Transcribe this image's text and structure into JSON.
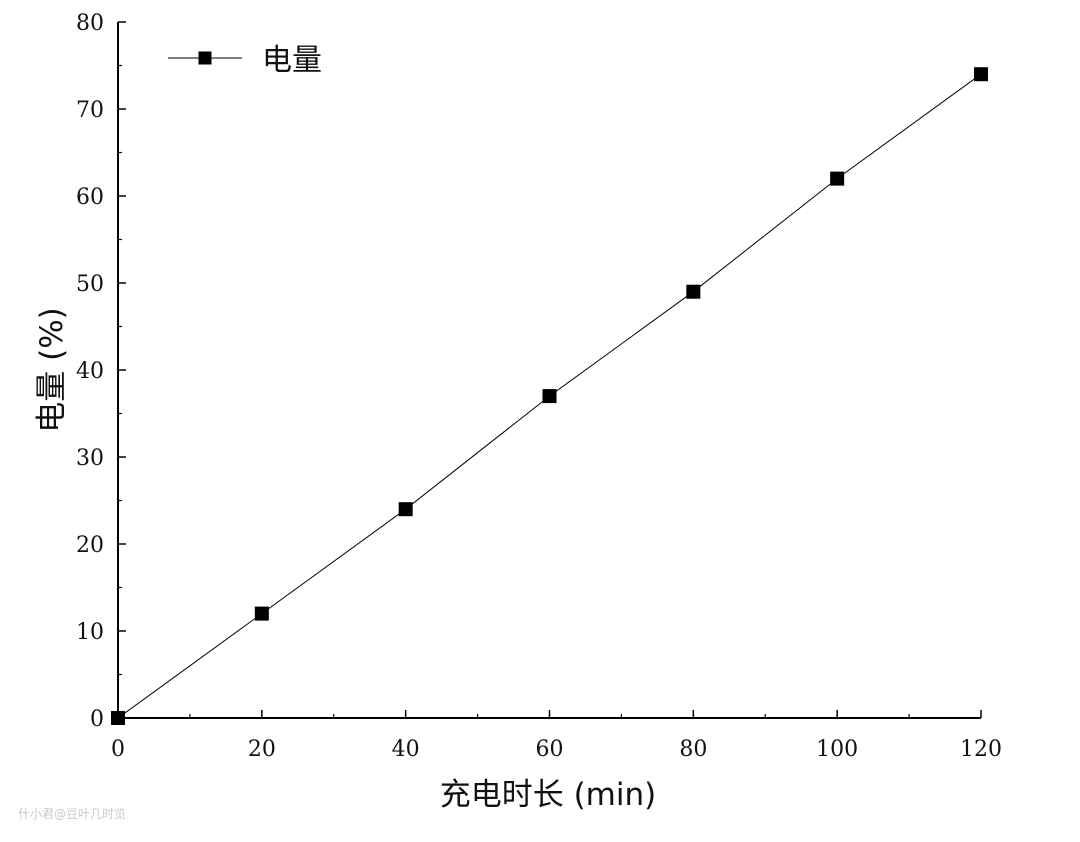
{
  "chart_data": {
    "type": "line",
    "x": [
      0,
      20,
      40,
      60,
      80,
      100,
      120
    ],
    "series": [
      {
        "name": "电量",
        "values": [
          0,
          12,
          24,
          37,
          49,
          62,
          74
        ]
      }
    ],
    "xlabel": "充电时长 (min)",
    "ylabel": "电量 (%)",
    "xlim": [
      0,
      120
    ],
    "ylim": [
      0,
      80
    ],
    "x_ticks": [
      0,
      20,
      40,
      60,
      80,
      100,
      120
    ],
    "y_ticks": [
      0,
      10,
      20,
      30,
      40,
      50,
      60,
      70,
      80
    ],
    "grid": false,
    "legend_position": "top-left",
    "marker": "square",
    "colors": {
      "line": "#000000",
      "marker": "#000000"
    }
  },
  "watermark": "什小君@豆叶几时览"
}
